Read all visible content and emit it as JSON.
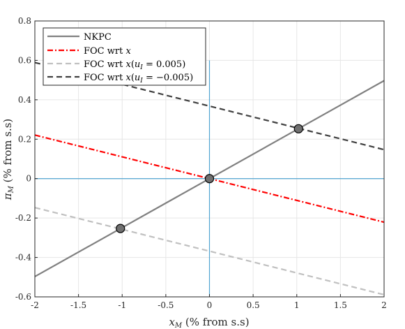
{
  "chart_data": {
    "type": "line",
    "xlabel": "x_M (% from s.s)",
    "ylabel": "π_M (% from s.s)",
    "xlim": [
      -2,
      2
    ],
    "ylim": [
      -0.6,
      0.8
    ],
    "xticks": [
      -2,
      -1.5,
      -1,
      -0.5,
      0,
      0.5,
      1,
      1.5,
      2
    ],
    "yticks": [
      -0.6,
      -0.4,
      -0.2,
      0,
      0.2,
      0.4,
      0.6,
      0.8
    ],
    "xtick_labels": [
      "-2",
      "-1.5",
      "-1",
      "-0.5",
      "0",
      "0.5",
      "1",
      "1.5",
      "2"
    ],
    "ytick_labels": [
      "-0.6",
      "-0.4",
      "-0.2",
      "0",
      "0.2",
      "0.4",
      "0.6",
      "0.8"
    ],
    "grid": true,
    "legend_position": "top-left",
    "series": [
      {
        "name": "NKPC",
        "x": [
          -2,
          2
        ],
        "y": [
          -0.497,
          0.497
        ],
        "color": "#808080",
        "dash": "solid"
      },
      {
        "name": "FOC wrt x",
        "x": [
          -2,
          2
        ],
        "y": [
          0.221,
          -0.221
        ],
        "color": "#ff0000",
        "dash": "dashdot"
      },
      {
        "name": "FOC wrt x(u_I = 0.005)",
        "x": [
          -2,
          2
        ],
        "y": [
          -0.147,
          -0.589
        ],
        "color": "#c0c0c0",
        "dash": "dashed"
      },
      {
        "name": "FOC wrt x(u_I = −0.005)",
        "x": [
          -2,
          2
        ],
        "y": [
          0.589,
          0.147
        ],
        "color": "#404040",
        "dash": "dashed"
      }
    ],
    "reference_lines": {
      "x0": {
        "x": 0,
        "y": [
          -0.6,
          0.6
        ]
      },
      "y0": {
        "y": 0,
        "x": [
          -2,
          2
        ]
      },
      "color": "#4fa3d1"
    },
    "markers": [
      {
        "x": -1.02,
        "y": -0.253
      },
      {
        "x": 0,
        "y": 0
      },
      {
        "x": 1.02,
        "y": 0.253
      }
    ],
    "marker_color": "#707070"
  }
}
